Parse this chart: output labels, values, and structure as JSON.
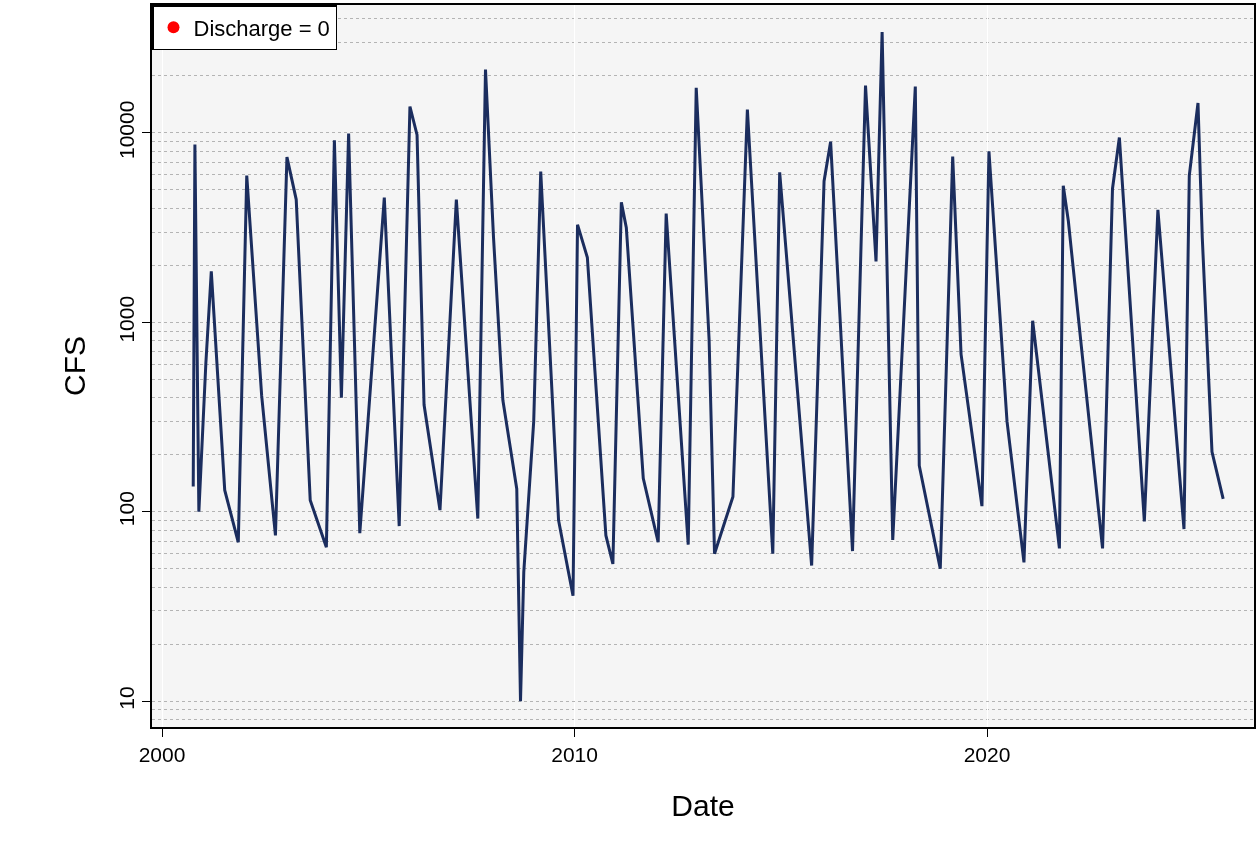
{
  "chart_data": {
    "type": "line",
    "xlabel": "Date",
    "ylabel": "CFS",
    "log": "y",
    "grid": true,
    "legend": "top left",
    "line_style": "solid",
    "marker": "none",
    "xlim": [
      "1999-10-04",
      "2026-06-22"
    ],
    "xticks": [
      "2000",
      "2010",
      "2020"
    ],
    "ylim": [
      7.3,
      47400
    ],
    "yticks": [
      10,
      100,
      1000,
      10000
    ],
    "series": [
      {
        "color": "#1b2d5e",
        "x": [
          "2000-10-03",
          "2000-10-18",
          "2000-11-22",
          "2001-01-23",
          "2001-03-12",
          "2001-07-09",
          "2001-11-06",
          "2002-01-20",
          "2002-06-01",
          "2002-10-01",
          "2003-01-11",
          "2003-04-03",
          "2003-08-05",
          "2003-12-26",
          "2004-03-06",
          "2004-05-07",
          "2004-07-10",
          "2004-10-17",
          "2005-05-22",
          "2005-10-01",
          "2006-01-04",
          "2006-03-08",
          "2006-05-09",
          "2006-09-27",
          "2007-02-19",
          "2007-08-28",
          "2007-11-04",
          "2008-01-14",
          "2008-04-06",
          "2008-08-07",
          "2008-09-09",
          "2008-10-08",
          "2009-01-04",
          "2009-03-07",
          "2009-08-12",
          "2009-12-18",
          "2010-01-27",
          "2010-04-24",
          "2010-10-05",
          "2010-12-06",
          "2011-02-19",
          "2011-04-04",
          "2011-09-01",
          "2012-01-11",
          "2012-03-22",
          "2012-10-03",
          "2012-12-13",
          "2013-04-06",
          "2013-05-24",
          "2013-11-03",
          "2014-03-11",
          "2014-10-22",
          "2014-12-22",
          "2015-02-14",
          "2015-10-01",
          "2016-01-19",
          "2016-03-17",
          "2016-09-27",
          "2017-01-20",
          "2017-04-23",
          "2017-06-16",
          "2017-09-18",
          "2018-04-06",
          "2018-05-11",
          "2018-11-13",
          "2019-03-03",
          "2019-05-16",
          "2019-11-17",
          "2020-01-18",
          "2020-06-26",
          "2020-11-23",
          "2021-02-08",
          "2021-10-03",
          "2021-11-06",
          "2021-12-21",
          "2022-04-18",
          "2022-10-20",
          "2023-01-16",
          "2023-03-18",
          "2023-10-25",
          "2024-02-22",
          "2024-10-10",
          "2024-11-26",
          "2025-02-11",
          "2025-03-21",
          "2025-06-15",
          "2025-09-22"
        ],
        "values": [
          136,
          8700,
          100,
          610,
          1860,
          130,
          69,
          5960,
          410,
          75,
          7460,
          4450,
          115,
          65,
          9140,
          400,
          9930,
          77,
          4560,
          84,
          13800,
          9770,
          367,
          102,
          4450,
          92,
          21600,
          2810,
          388,
          132,
          10,
          48,
          300,
          6250,
          90,
          36,
          3280,
          2200,
          75,
          53,
          4300,
          3160,
          150,
          69,
          3750,
          67,
          17300,
          810,
          60,
          120,
          13300,
          60,
          6200,
          2500,
          52,
          5560,
          9000,
          62,
          17800,
          2100,
          34100,
          71,
          17600,
          175,
          50,
          7500,
          680,
          107,
          8000,
          300,
          54,
          1020,
          64,
          5260,
          3430,
          720,
          64,
          5080,
          9460,
          89,
          3930,
          81,
          5960,
          14400,
          2800,
          207,
          117
        ]
      },
      {
        "type": "scatter",
        "name": "Discharge = 0",
        "color": "#ff0000",
        "marker": "circle"
      }
    ]
  }
}
